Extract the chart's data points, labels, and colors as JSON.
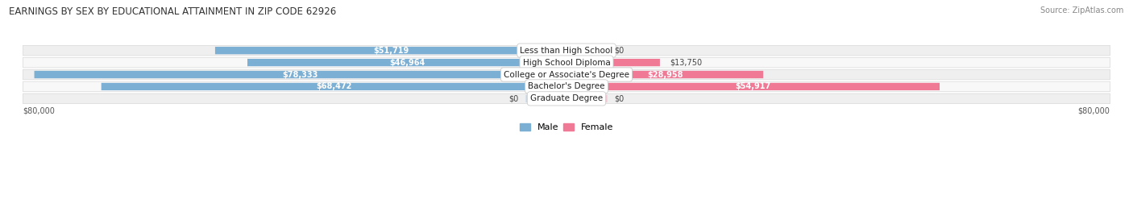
{
  "title": "EARNINGS BY SEX BY EDUCATIONAL ATTAINMENT IN ZIP CODE 62926",
  "source": "Source: ZipAtlas.com",
  "categories": [
    "Less than High School",
    "High School Diploma",
    "College or Associate's Degree",
    "Bachelor's Degree",
    "Graduate Degree"
  ],
  "male_values": [
    51719,
    46964,
    78333,
    68472,
    0
  ],
  "female_values": [
    0,
    13750,
    28958,
    54917,
    0
  ],
  "male_labels": [
    "$51,719",
    "$46,964",
    "$78,333",
    "$68,472",
    "$0"
  ],
  "female_labels": [
    "$0",
    "$13,750",
    "$28,958",
    "$54,917",
    "$0"
  ],
  "male_color": "#7bafd4",
  "female_color": "#f07a96",
  "male_color_light": "#b8d0e8",
  "female_color_light": "#f5b8c8",
  "row_bg_odd": "#efefef",
  "row_bg_even": "#f8f8f8",
  "max_value": 80000,
  "axis_label_left": "$80,000",
  "axis_label_right": "$80,000",
  "figsize": [
    14.06,
    2.68
  ],
  "dpi": 100
}
